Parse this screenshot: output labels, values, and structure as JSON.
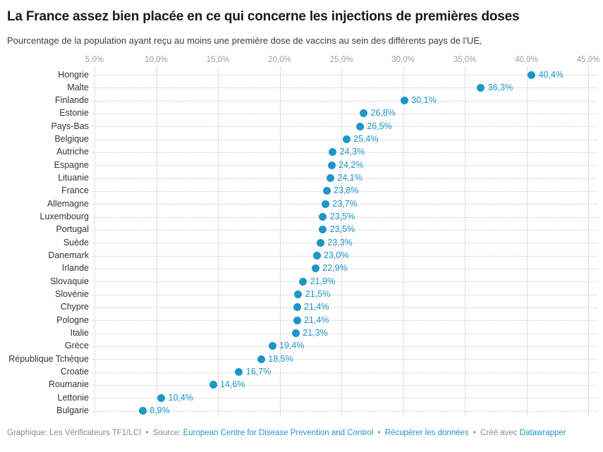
{
  "header": {
    "title": "La France assez bien placée en ce qui concerne les injections de premières doses",
    "subtitle": "Pourcentage de la population ayant reçu au moins une première dose de vaccins au sein des différents pays de l'UE,"
  },
  "chart_data": {
    "type": "scatter",
    "title": "La France assez bien placée en ce qui concerne les injections de premières doses",
    "subtitle": "Pourcentage de la population ayant reçu au moins une première dose de vaccins au sein des différents pays de l'UE,",
    "xlabel": "",
    "ylabel": "",
    "xlim": [
      5,
      45
    ],
    "x_ticks": [
      5,
      10,
      15,
      20,
      25,
      30,
      35,
      40,
      45
    ],
    "x_tick_labels": [
      "5,0%",
      "10,0%",
      "15,0%",
      "20,0%",
      "25,0%",
      "30,0%",
      "35,0%",
      "40,0%",
      "45,0%"
    ],
    "grid": "vertical-solid-with-horizontal-dotted-leaders",
    "legend_position": "none",
    "dot_color": "#1e96c8",
    "label_color": "#1e96c8",
    "categories": [
      "Hongrie",
      "Malte",
      "Finlande",
      "Estonie",
      "Pays-Bas",
      "Belgique",
      "Autriche",
      "Espagne",
      "Lituanie",
      "France",
      "Allemagne",
      "Luxembourg",
      "Portugal",
      "Suède",
      "Danemark",
      "Irlande",
      "Slovaquie",
      "Slovénie",
      "Chypre",
      "Pologne",
      "Italie",
      "Grèce",
      "République Tchèque",
      "Croatie",
      "Roumanie",
      "Lettonie",
      "Bulgarie"
    ],
    "values": [
      40.4,
      36.3,
      30.1,
      26.8,
      26.5,
      25.4,
      24.3,
      24.2,
      24.1,
      23.8,
      23.7,
      23.5,
      23.5,
      23.3,
      23.0,
      22.9,
      21.9,
      21.5,
      21.4,
      21.4,
      21.3,
      19.4,
      18.5,
      16.7,
      14.6,
      10.4,
      8.9
    ],
    "value_labels": [
      "40,4%",
      "36,3%",
      "30,1%",
      "26,8%",
      "26,5%",
      "25,4%",
      "24,3%",
      "24,2%",
      "24,1%",
      "23,8%",
      "23,7%",
      "23,5%",
      "23,5%",
      "23,3%",
      "23,0%",
      "22,9%",
      "21,9%",
      "21,5%",
      "21,4%",
      "21,4%",
      "21,3%",
      "19,4%",
      "18,5%",
      "16,7%",
      "14,6%",
      "10,4%",
      "8,9%"
    ]
  },
  "footer": {
    "byline": "Graphique: Les Vérificateurs TF1/LCI",
    "separator": "•",
    "source_label": "Source:",
    "source_link": "European Centre for Disease Prevention and Control",
    "data_link": "Récupérer les données",
    "created_label": "Créé avec",
    "created_link": "Datawrapper",
    "link_color": "#1e96c8"
  }
}
